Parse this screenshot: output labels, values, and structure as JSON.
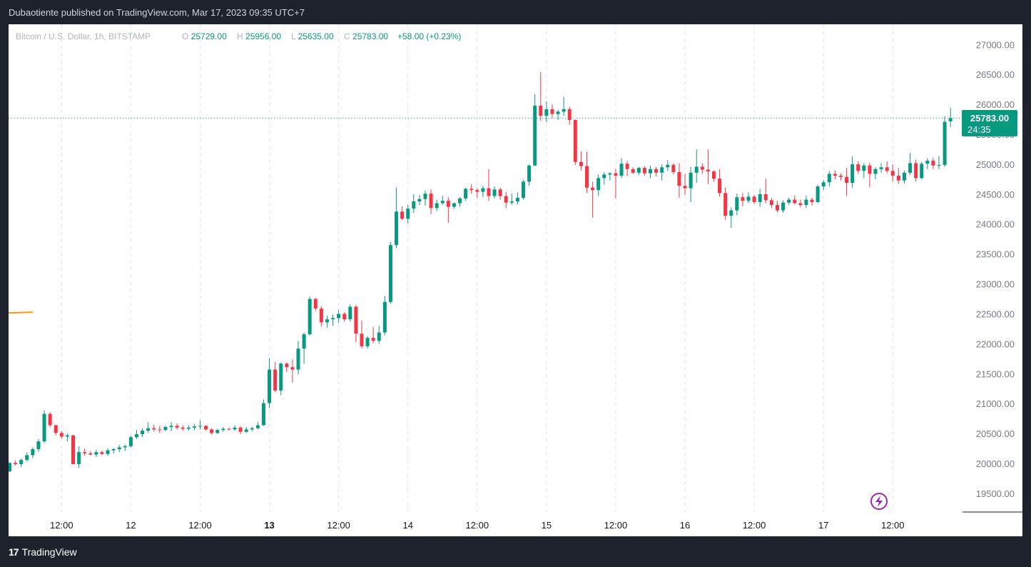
{
  "header": {
    "published": "Dubaotiente published on TradingView.com, Mar 17, 2023 09:35 UTC+7"
  },
  "legend": {
    "symbol": "Bitcoin / U.S. Dollar, 1h, BITSTAMP",
    "o_label": "O",
    "o_value": "25729.00",
    "h_label": "H",
    "h_value": "25956.00",
    "l_label": "L",
    "l_value": "25635.00",
    "c_label": "C",
    "c_value": "25783.00",
    "change": "+58.00 (+0.23%)"
  },
  "price_tag": {
    "price": "25783.00",
    "countdown": "24:35"
  },
  "footer": {
    "brand": "TradingView",
    "logo_icon": "tradingview-logo-icon"
  },
  "colors": {
    "up": "#089981",
    "down": "#f23645",
    "ma": "#ff9800",
    "axis_text": "#787b86",
    "grid": "#e0e3eb"
  },
  "chart_data": {
    "type": "candlestick",
    "ylim": [
      19200,
      27350
    ],
    "yticks": [
      19500,
      20000,
      20500,
      21000,
      21500,
      22000,
      22500,
      23000,
      23500,
      24000,
      24500,
      25000,
      25500,
      26000,
      26500,
      27000
    ],
    "ytick_labels": [
      "19500.00",
      "20000.00",
      "20500.00",
      "21000.00",
      "21500.00",
      "22000.00",
      "22500.00",
      "23000.00",
      "23500.00",
      "24000.00",
      "24500.00",
      "25000.00",
      "25500.00",
      "26000.00",
      "26500.00",
      "27000.00"
    ],
    "xticks": [
      {
        "label": "12:00",
        "i": 9,
        "bold": false
      },
      {
        "label": "12",
        "i": 21,
        "bold": false
      },
      {
        "label": "12:00",
        "i": 33,
        "bold": false
      },
      {
        "label": "13",
        "i": 45,
        "bold": true
      },
      {
        "label": "12:00",
        "i": 57,
        "bold": false
      },
      {
        "label": "14",
        "i": 69,
        "bold": false
      },
      {
        "label": "12:00",
        "i": 81,
        "bold": false
      },
      {
        "label": "15",
        "i": 93,
        "bold": false
      },
      {
        "label": "12:00",
        "i": 105,
        "bold": false
      },
      {
        "label": "16",
        "i": 117,
        "bold": false
      },
      {
        "label": "12:00",
        "i": 129,
        "bold": false
      },
      {
        "label": "17",
        "i": 141,
        "bold": false
      },
      {
        "label": "12:00",
        "i": 153,
        "bold": false
      }
    ],
    "last_price": 25783,
    "ma_series": [
      [
        -2,
        22520
      ],
      [
        4,
        22540
      ]
    ],
    "candles": [
      [
        19880,
        20030,
        19870,
        20020
      ],
      [
        20020,
        20060,
        19980,
        20000
      ],
      [
        20000,
        20100,
        19950,
        20070
      ],
      [
        20070,
        20200,
        20040,
        20150
      ],
      [
        20150,
        20280,
        20100,
        20250
      ],
      [
        20250,
        20420,
        20200,
        20380
      ],
      [
        20380,
        20900,
        20350,
        20840
      ],
      [
        20840,
        20870,
        20620,
        20650
      ],
      [
        20650,
        20660,
        20480,
        20520
      ],
      [
        20520,
        20550,
        20430,
        20460
      ],
      [
        20460,
        20520,
        20380,
        20480
      ],
      [
        20480,
        20490,
        20000,
        20000
      ],
      [
        20000,
        20300,
        19940,
        20200
      ],
      [
        20200,
        20260,
        20140,
        20180
      ],
      [
        20180,
        20220,
        20150,
        20160
      ],
      [
        20160,
        20240,
        20120,
        20200
      ],
      [
        20200,
        20230,
        20150,
        20170
      ],
      [
        20170,
        20260,
        20140,
        20230
      ],
      [
        20230,
        20270,
        20180,
        20250
      ],
      [
        20250,
        20320,
        20200,
        20280
      ],
      [
        20280,
        20330,
        20220,
        20300
      ],
      [
        20300,
        20480,
        20280,
        20450
      ],
      [
        20450,
        20570,
        20420,
        20500
      ],
      [
        20500,
        20600,
        20450,
        20560
      ],
      [
        20560,
        20700,
        20520,
        20600
      ],
      [
        20600,
        20660,
        20540,
        20580
      ],
      [
        20580,
        20640,
        20520,
        20570
      ],
      [
        20570,
        20650,
        20550,
        20620
      ],
      [
        20620,
        20700,
        20550,
        20640
      ],
      [
        20640,
        20680,
        20580,
        20610
      ],
      [
        20610,
        20650,
        20560,
        20590
      ],
      [
        20590,
        20650,
        20560,
        20610
      ],
      [
        20610,
        20670,
        20570,
        20630
      ],
      [
        20630,
        20730,
        20580,
        20640
      ],
      [
        20640,
        20650,
        20560,
        20580
      ],
      [
        20580,
        20600,
        20490,
        20520
      ],
      [
        20520,
        20590,
        20500,
        20570
      ],
      [
        20570,
        20620,
        20540,
        20590
      ],
      [
        20590,
        20610,
        20560,
        20580
      ],
      [
        20580,
        20650,
        20560,
        20610
      ],
      [
        20610,
        20630,
        20500,
        20540
      ],
      [
        20540,
        20620,
        20520,
        20580
      ],
      [
        20580,
        20630,
        20550,
        20600
      ],
      [
        20600,
        20700,
        20580,
        20650
      ],
      [
        20650,
        21080,
        20640,
        21020
      ],
      [
        21020,
        21770,
        20940,
        21580
      ],
      [
        21580,
        21710,
        21200,
        21230
      ],
      [
        21230,
        21700,
        21150,
        21680
      ],
      [
        21680,
        21700,
        21540,
        21620
      ],
      [
        21620,
        21750,
        21360,
        21580
      ],
      [
        21580,
        22060,
        21500,
        21930
      ],
      [
        21930,
        22200,
        21680,
        22170
      ],
      [
        22170,
        22800,
        22150,
        22760
      ],
      [
        22760,
        22780,
        22560,
        22600
      ],
      [
        22600,
        22640,
        22300,
        22370
      ],
      [
        22370,
        22480,
        22280,
        22420
      ],
      [
        22420,
        22500,
        22310,
        22440
      ],
      [
        22440,
        22580,
        22360,
        22510
      ],
      [
        22510,
        22540,
        22380,
        22420
      ],
      [
        22420,
        22670,
        22380,
        22630
      ],
      [
        22630,
        22660,
        22040,
        22180
      ],
      [
        22180,
        22400,
        21930,
        21970
      ],
      [
        21970,
        22140,
        21930,
        22110
      ],
      [
        22110,
        22290,
        22020,
        22060
      ],
      [
        22060,
        22310,
        22010,
        22200
      ],
      [
        22200,
        22810,
        22150,
        22710
      ],
      [
        22710,
        23710,
        22680,
        23660
      ],
      [
        23660,
        24620,
        23610,
        24220
      ],
      [
        24220,
        24310,
        24080,
        24100
      ],
      [
        24100,
        24330,
        24020,
        24270
      ],
      [
        24270,
        24510,
        24200,
        24390
      ],
      [
        24390,
        24500,
        24330,
        24430
      ],
      [
        24430,
        24570,
        24320,
        24520
      ],
      [
        24520,
        24590,
        24180,
        24280
      ],
      [
        24280,
        24420,
        24230,
        24360
      ],
      [
        24360,
        24480,
        24330,
        24400
      ],
      [
        24400,
        24460,
        24030,
        24300
      ],
      [
        24300,
        24370,
        24270,
        24360
      ],
      [
        24360,
        24460,
        24300,
        24440
      ],
      [
        24440,
        24620,
        24400,
        24600
      ],
      [
        24600,
        24680,
        24520,
        24580
      ],
      [
        24580,
        24610,
        24450,
        24550
      ],
      [
        24550,
        24650,
        24460,
        24610
      ],
      [
        24610,
        24930,
        24400,
        24480
      ],
      [
        24480,
        24640,
        24440,
        24590
      ],
      [
        24590,
        24620,
        24420,
        24480
      ],
      [
        24480,
        24550,
        24280,
        24370
      ],
      [
        24370,
        24520,
        24330,
        24390
      ],
      [
        24390,
        24540,
        24340,
        24450
      ],
      [
        24450,
        24750,
        24420,
        24720
      ],
      [
        24720,
        25010,
        24650,
        24990
      ],
      [
        24990,
        26180,
        24980,
        25990
      ],
      [
        25990,
        26550,
        25740,
        25820
      ],
      [
        25820,
        26060,
        25710,
        25930
      ],
      [
        25930,
        26010,
        25780,
        25850
      ],
      [
        25850,
        25920,
        25750,
        25890
      ],
      [
        25890,
        26140,
        25820,
        25930
      ],
      [
        25930,
        25970,
        25670,
        25750
      ],
      [
        25750,
        25760,
        25000,
        25050
      ],
      [
        25050,
        25230,
        24910,
        24980
      ],
      [
        24980,
        25220,
        24530,
        24620
      ],
      [
        24620,
        24720,
        24120,
        24580
      ],
      [
        24580,
        24840,
        24480,
        24780
      ],
      [
        24780,
        24880,
        24670,
        24840
      ],
      [
        24840,
        24880,
        24740,
        24860
      ],
      [
        24860,
        24930,
        24440,
        24820
      ],
      [
        24820,
        25110,
        24780,
        25020
      ],
      [
        25020,
        25070,
        24810,
        24930
      ],
      [
        24930,
        24960,
        24850,
        24870
      ],
      [
        24870,
        24970,
        24830,
        24950
      ],
      [
        24950,
        24980,
        24820,
        24860
      ],
      [
        24860,
        24990,
        24780,
        24930
      ],
      [
        24930,
        24970,
        24810,
        24870
      ],
      [
        24870,
        25010,
        24740,
        24960
      ],
      [
        24960,
        25080,
        24900,
        25000
      ],
      [
        25000,
        25030,
        24840,
        24880
      ],
      [
        24880,
        25030,
        24450,
        24650
      ],
      [
        24650,
        24850,
        24500,
        24610
      ],
      [
        24610,
        24970,
        24380,
        24870
      ],
      [
        24870,
        25260,
        24700,
        24970
      ],
      [
        24970,
        25030,
        24850,
        24920
      ],
      [
        24920,
        25260,
        24680,
        24890
      ],
      [
        24890,
        24910,
        24720,
        24770
      ],
      [
        24770,
        24930,
        24470,
        24530
      ],
      [
        24530,
        24620,
        24080,
        24150
      ],
      [
        24150,
        24290,
        23950,
        24240
      ],
      [
        24240,
        24520,
        24160,
        24460
      ],
      [
        24460,
        24530,
        24310,
        24400
      ],
      [
        24400,
        24540,
        24360,
        24470
      ],
      [
        24470,
        24500,
        24350,
        24380
      ],
      [
        24380,
        24600,
        24300,
        24510
      ],
      [
        24510,
        24770,
        24360,
        24410
      ],
      [
        24410,
        24450,
        24280,
        24330
      ],
      [
        24330,
        24400,
        24210,
        24240
      ],
      [
        24240,
        24410,
        24200,
        24370
      ],
      [
        24370,
        24450,
        24330,
        24420
      ],
      [
        24420,
        24490,
        24340,
        24360
      ],
      [
        24360,
        24420,
        24290,
        24330
      ],
      [
        24330,
        24490,
        24280,
        24420
      ],
      [
        24420,
        24450,
        24320,
        24380
      ],
      [
        24380,
        24670,
        24360,
        24640
      ],
      [
        24640,
        24750,
        24580,
        24710
      ],
      [
        24710,
        24900,
        24640,
        24850
      ],
      [
        24850,
        24910,
        24760,
        24820
      ],
      [
        24820,
        24860,
        24740,
        24800
      ],
      [
        24800,
        24950,
        24480,
        24700
      ],
      [
        24700,
        25140,
        24620,
        25010
      ],
      [
        25010,
        25060,
        24850,
        24900
      ],
      [
        24900,
        25030,
        24780,
        24990
      ],
      [
        24990,
        25040,
        24630,
        24850
      ],
      [
        24850,
        24960,
        24760,
        24930
      ],
      [
        24930,
        25030,
        24870,
        24960
      ],
      [
        24960,
        25060,
        24860,
        24900
      ],
      [
        24900,
        25010,
        24720,
        24820
      ],
      [
        24820,
        24950,
        24680,
        24740
      ],
      [
        24740,
        24900,
        24690,
        24870
      ],
      [
        24870,
        25200,
        24830,
        25030
      ],
      [
        25030,
        25090,
        24720,
        24780
      ],
      [
        24780,
        25050,
        24760,
        25020
      ],
      [
        25020,
        25110,
        24930,
        25070
      ],
      [
        25070,
        25120,
        24930,
        24990
      ],
      [
        24990,
        25150,
        24930,
        25000
      ],
      [
        25000,
        25810,
        24970,
        25720
      ],
      [
        25729,
        25956,
        25635,
        25783
      ]
    ]
  }
}
